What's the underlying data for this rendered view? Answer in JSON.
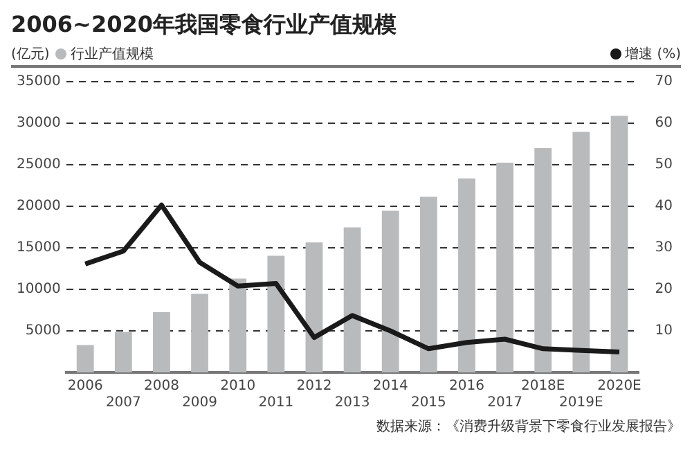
{
  "chart_data": {
    "type": "bar",
    "title": "2006~2020年我国零食行业产值规模",
    "ylabel": "(亿元)",
    "categories": [
      "2006",
      "2007",
      "2008",
      "2009",
      "2010",
      "2011",
      "2012",
      "2013",
      "2014",
      "2015",
      "2016",
      "2017",
      "2018E",
      "2019E",
      "2020E"
    ],
    "series": [
      {
        "name": "行业产值规模",
        "color": "#b9babc",
        "values": [
          3300,
          4850,
          7250,
          9450,
          11300,
          14050,
          15650,
          17450,
          19450,
          21150,
          23350,
          25250,
          27000,
          28950,
          30900
        ]
      },
      {
        "name": "增速 (%)",
        "type": "line",
        "axis": "y2",
        "color": "#1a1a1a",
        "values": [
          26.1,
          29.2,
          40.3,
          26.5,
          20.8,
          21.4,
          8.4,
          13.7,
          10.0,
          5.7,
          7.2,
          8.0,
          5.7,
          5.3,
          4.9
        ]
      }
    ],
    "ylim": [
      0,
      35000
    ],
    "yticks": [
      5000,
      10000,
      15000,
      20000,
      25000,
      30000,
      35000
    ],
    "y2lim": [
      0,
      70
    ],
    "y2ticks": [
      10,
      20,
      30,
      40,
      50,
      60,
      70
    ],
    "grid": "y",
    "legend": "top",
    "marker": "none",
    "line_style": "solid",
    "annotations": [
      "数据来源：《消费升级背景下零食行业发展报告》"
    ]
  }
}
